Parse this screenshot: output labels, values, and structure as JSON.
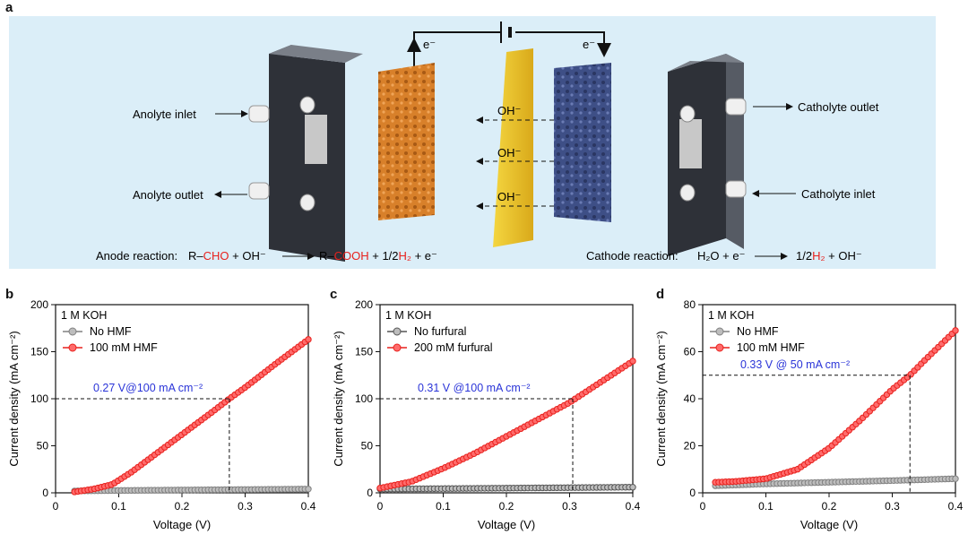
{
  "panels": {
    "a": "a",
    "b": "b",
    "c": "c",
    "d": "d"
  },
  "schematic": {
    "electron_left": "e⁻",
    "electron_right": "e⁻",
    "anolyte_inlet": "Anolyte inlet",
    "anolyte_outlet": "Anolyte outlet",
    "catholyte_outlet": "Catholyte outlet",
    "catholyte_inlet": "Catholyte inlet",
    "oh_labels": [
      "OH⁻",
      "OH⁻",
      "OH⁻"
    ],
    "anode_reaction_label": "Anode reaction:",
    "anode_reaction_parts": [
      "R–",
      "CHO",
      " + OH⁻",
      "R–",
      "COOH",
      " + 1/2",
      "H₂",
      " + e⁻"
    ],
    "cathode_reaction_label": "Cathode reaction:",
    "cathode_reaction_parts": [
      "H₂O + e⁻",
      "1/2",
      "H₂",
      " + OH⁻"
    ],
    "colors": {
      "highlight": "#e8211d",
      "background": "#dbeef8",
      "anode": "#d8802a",
      "cathode": "#3e4f86",
      "membrane": "#e8c22a"
    }
  },
  "chart_data": [
    {
      "type": "line",
      "panel": "b",
      "xlabel": "Voltage (V)",
      "ylabel": "Current density (mA cm⁻²)",
      "xlim": [
        0,
        0.4
      ],
      "ylim": [
        0,
        200
      ],
      "xticks": [
        0,
        0.1,
        0.2,
        0.3,
        0.4
      ],
      "xtick_labels": [
        "0",
        "0.1",
        "0.2",
        "0.3",
        "0.4"
      ],
      "yticks": [
        0,
        50,
        100,
        150,
        200
      ],
      "ytick_labels": [
        "0",
        "50",
        "100",
        "150",
        "200"
      ],
      "legend_title": "1 M KOH",
      "annotation": "0.27 V@100 mA cm⁻²",
      "annotation_point": [
        0.275,
        100
      ],
      "series": [
        {
          "name": "No HMF",
          "color": "#808080",
          "x": [
            0.03,
            0.1,
            0.2,
            0.3,
            0.4
          ],
          "y": [
            2,
            2.5,
            3,
            3.5,
            4
          ]
        },
        {
          "name": "100 mM HMF",
          "color": "#e8211d",
          "x": [
            0.03,
            0.06,
            0.09,
            0.12,
            0.15,
            0.2,
            0.25,
            0.275,
            0.3,
            0.35,
            0.4
          ],
          "y": [
            1,
            4,
            9,
            22,
            37,
            62,
            87,
            100,
            112,
            138,
            163
          ]
        }
      ]
    },
    {
      "type": "line",
      "panel": "c",
      "xlabel": "Voltage (V)",
      "ylabel": "Current density (mA cm⁻²)",
      "xlim": [
        0,
        0.4
      ],
      "ylim": [
        0,
        200
      ],
      "xticks": [
        0,
        0.1,
        0.2,
        0.3,
        0.4
      ],
      "xtick_labels": [
        "0",
        "0.1",
        "0.2",
        "0.3",
        "0.4"
      ],
      "yticks": [
        0,
        50,
        100,
        150,
        200
      ],
      "ytick_labels": [
        "0",
        "50",
        "100",
        "150",
        "200"
      ],
      "legend_title": "1 M KOH",
      "annotation": "0.31 V @100 mA cm⁻²",
      "annotation_point": [
        0.305,
        100
      ],
      "series": [
        {
          "name": "No furfural",
          "color": "#555555",
          "x": [
            0,
            0.1,
            0.2,
            0.3,
            0.4
          ],
          "y": [
            4,
            4.5,
            5,
            5.5,
            6
          ]
        },
        {
          "name": "200 mM furfural",
          "color": "#e8211d",
          "x": [
            0,
            0.05,
            0.1,
            0.15,
            0.2,
            0.25,
            0.3,
            0.35,
            0.4
          ],
          "y": [
            5,
            12,
            26,
            42,
            60,
            78,
            96,
            118,
            140
          ]
        }
      ]
    },
    {
      "type": "line",
      "panel": "d",
      "xlabel": "Voltage (V)",
      "ylabel": "Current density (mA cm⁻²)",
      "xlim": [
        0,
        0.4
      ],
      "ylim": [
        0,
        80
      ],
      "xticks": [
        0,
        0.1,
        0.2,
        0.3,
        0.4
      ],
      "xtick_labels": [
        "0",
        "0.1",
        "0.2",
        "0.3",
        "0.4"
      ],
      "yticks": [
        0,
        20,
        40,
        60,
        80
      ],
      "ytick_labels": [
        "0",
        "20",
        "40",
        "60",
        "80"
      ],
      "legend_title": "1 M KOH",
      "annotation": "0.33 V @ 50 mA cm⁻²",
      "annotation_point": [
        0.328,
        50
      ],
      "series": [
        {
          "name": "No HMF",
          "color": "#808080",
          "x": [
            0.02,
            0.1,
            0.2,
            0.3,
            0.4
          ],
          "y": [
            3,
            3.8,
            4.5,
            5.2,
            6
          ]
        },
        {
          "name": "100 mM HMF",
          "color": "#e8211d",
          "x": [
            0.02,
            0.05,
            0.1,
            0.15,
            0.2,
            0.25,
            0.3,
            0.328,
            0.35,
            0.4
          ],
          "y": [
            4.5,
            4.8,
            6,
            10,
            19,
            31,
            44,
            50,
            56,
            69
          ]
        }
      ]
    }
  ]
}
